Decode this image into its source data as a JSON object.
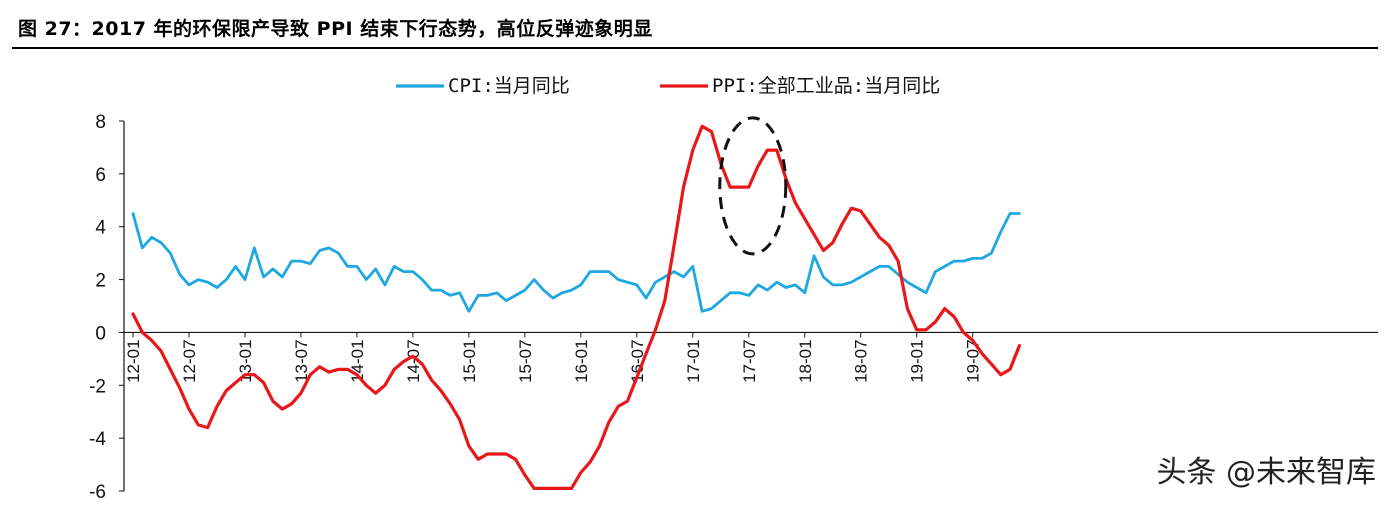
{
  "title": "图 27：2017 年的环保限产导致 PPI 结束下行态势，高位反弹迹象明显",
  "watermark": "头条 @未来智库",
  "chart_data": {
    "type": "line",
    "legend_position": "top",
    "ylim": [
      -6,
      8
    ],
    "yticks": [
      -6,
      -4,
      -2,
      0,
      2,
      4,
      6,
      8
    ],
    "x_tick_labels": [
      "12-01",
      "12-07",
      "13-01",
      "13-07",
      "14-01",
      "14-07",
      "15-01",
      "15-07",
      "16-01",
      "16-07",
      "17-01",
      "17-07",
      "18-01",
      "18-07",
      "19-01",
      "19-07"
    ],
    "x_start": "2012-01",
    "x_end": "2019-12",
    "series": [
      {
        "name": "CPI:当月同比",
        "color": "#1ea7e1",
        "values": [
          4.5,
          3.2,
          3.6,
          3.4,
          3.0,
          2.2,
          1.8,
          2.0,
          1.9,
          1.7,
          2.0,
          2.5,
          2.0,
          3.2,
          2.1,
          2.4,
          2.1,
          2.7,
          2.7,
          2.6,
          3.1,
          3.2,
          3.0,
          2.5,
          2.5,
          2.0,
          2.4,
          1.8,
          2.5,
          2.3,
          2.3,
          2.0,
          1.6,
          1.6,
          1.4,
          1.5,
          0.8,
          1.4,
          1.4,
          1.5,
          1.2,
          1.4,
          1.6,
          2.0,
          1.6,
          1.3,
          1.5,
          1.6,
          1.8,
          2.3,
          2.3,
          2.3,
          2.0,
          1.9,
          1.8,
          1.3,
          1.9,
          2.1,
          2.3,
          2.1,
          2.5,
          0.8,
          0.9,
          1.2,
          1.5,
          1.5,
          1.4,
          1.8,
          1.6,
          1.9,
          1.7,
          1.8,
          1.5,
          2.9,
          2.1,
          1.8,
          1.8,
          1.9,
          2.1,
          2.3,
          2.5,
          2.5,
          2.2,
          1.9,
          1.7,
          1.5,
          2.3,
          2.5,
          2.7,
          2.7,
          2.8,
          2.8,
          3.0,
          3.8,
          4.5,
          4.5
        ]
      },
      {
        "name": "PPI:全部工业品:当月同比",
        "color": "#e8171a",
        "values": [
          0.7,
          0.0,
          -0.3,
          -0.7,
          -1.4,
          -2.1,
          -2.9,
          -3.5,
          -3.6,
          -2.8,
          -2.2,
          -1.9,
          -1.6,
          -1.6,
          -1.9,
          -2.6,
          -2.9,
          -2.7,
          -2.3,
          -1.6,
          -1.3,
          -1.5,
          -1.4,
          -1.4,
          -1.6,
          -2.0,
          -2.3,
          -2.0,
          -1.4,
          -1.1,
          -0.9,
          -1.2,
          -1.8,
          -2.2,
          -2.7,
          -3.3,
          -4.3,
          -4.8,
          -4.6,
          -4.6,
          -4.6,
          -4.8,
          -5.4,
          -5.9,
          -5.9,
          -5.9,
          -5.9,
          -5.9,
          -5.3,
          -4.9,
          -4.3,
          -3.4,
          -2.8,
          -2.6,
          -1.7,
          -0.8,
          0.1,
          1.2,
          3.3,
          5.5,
          6.9,
          7.8,
          7.6,
          6.4,
          5.5,
          5.5,
          5.5,
          6.3,
          6.9,
          6.9,
          5.8,
          4.9,
          4.3,
          3.7,
          3.1,
          3.4,
          4.1,
          4.7,
          4.6,
          4.1,
          3.6,
          3.3,
          2.7,
          0.9,
          0.1,
          0.1,
          0.4,
          0.9,
          0.6,
          0.0,
          -0.3,
          -0.8,
          -1.2,
          -1.6,
          -1.4,
          -0.5
        ]
      }
    ],
    "annotation": {
      "type": "dashed-ellipse",
      "center_x": "2017-07",
      "center_y": 6.0
    }
  }
}
